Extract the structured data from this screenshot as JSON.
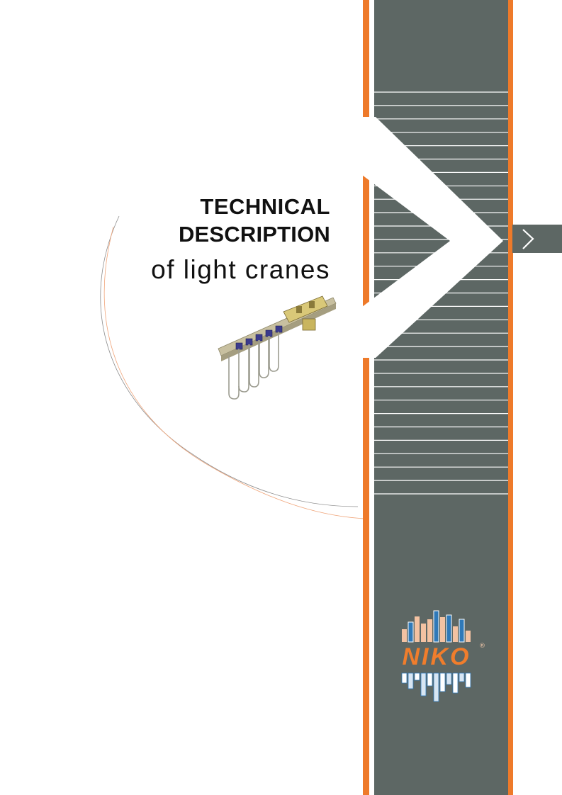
{
  "title": {
    "line1": "TECHNICAL",
    "line2": "DESCRIPTION",
    "line3": "of light cranes"
  },
  "brand": {
    "name": "NIKO",
    "registered_mark": "®"
  },
  "icons": {
    "next": "chevron-right-icon",
    "product": "crane-festoon-system-image",
    "logo": "niko-logo"
  },
  "colors": {
    "band_gray": "#5d6764",
    "accent_orange": "#ee7a2a",
    "stripe_white": "#ffffff",
    "logo_blue": "#2f79b8",
    "logo_peach": "#f3c2a2",
    "text_dark": "#111111"
  }
}
